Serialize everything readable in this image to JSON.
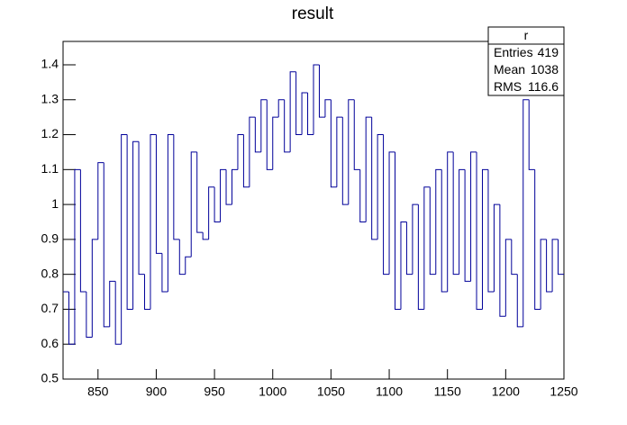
{
  "chart_data": {
    "type": "histogram",
    "title": "result",
    "bins": [
      820,
      825,
      830,
      835,
      840,
      845,
      850,
      855,
      860,
      865,
      870,
      875,
      880,
      885,
      890,
      895,
      900,
      905,
      910,
      915,
      920,
      925,
      930,
      935,
      940,
      945,
      950,
      955,
      960,
      965,
      970,
      975,
      980,
      985,
      990,
      995,
      1000,
      1005,
      1010,
      1015,
      1020,
      1025,
      1030,
      1035,
      1040,
      1045,
      1050,
      1055,
      1060,
      1065,
      1070,
      1075,
      1080,
      1085,
      1090,
      1095,
      1100,
      1105,
      1110,
      1115,
      1120,
      1125,
      1130,
      1135,
      1140,
      1145,
      1150,
      1155,
      1160,
      1165,
      1170,
      1175,
      1180,
      1185,
      1190,
      1195,
      1200,
      1205,
      1210,
      1215,
      1220,
      1225,
      1230,
      1235,
      1240,
      1245,
      1250
    ],
    "values": [
      0.75,
      0.6,
      1.1,
      0.75,
      0.62,
      0.9,
      1.12,
      0.65,
      0.78,
      0.6,
      1.2,
      0.7,
      1.18,
      0.8,
      0.7,
      1.2,
      0.86,
      0.75,
      1.2,
      0.9,
      0.8,
      0.85,
      1.15,
      0.92,
      0.9,
      1.05,
      0.95,
      1.1,
      1.0,
      1.1,
      1.2,
      1.05,
      1.25,
      1.15,
      1.3,
      1.1,
      1.25,
      1.3,
      1.15,
      1.38,
      1.2,
      1.32,
      1.2,
      1.4,
      1.25,
      1.3,
      1.05,
      1.25,
      1.0,
      1.3,
      1.1,
      0.95,
      1.25,
      0.9,
      1.2,
      0.8,
      1.15,
      0.7,
      0.95,
      0.8,
      1.0,
      0.7,
      1.05,
      0.8,
      1.1,
      0.75,
      1.15,
      0.8,
      1.1,
      0.78,
      1.15,
      0.7,
      1.1,
      0.75,
      1.0,
      0.68,
      0.9,
      0.8,
      0.65,
      1.3,
      1.1,
      0.7,
      0.9,
      0.75,
      0.9,
      0.8
    ],
    "color": "#000099",
    "xlim": [
      820,
      1250
    ],
    "xticks": [
      850,
      900,
      950,
      1000,
      1050,
      1100,
      1150,
      1200,
      1250
    ],
    "ylim": [
      0.5,
      1.467
    ],
    "yticks": [
      0.5,
      0.6,
      0.7,
      0.8,
      0.9,
      1,
      1.1,
      1.2,
      1.3,
      1.4
    ],
    "stats": {
      "title": "r",
      "rows": [
        {
          "label": "Entries",
          "value": 419
        },
        {
          "label": "Mean",
          "value": 1038
        },
        {
          "label": "RMS",
          "value": 116.6
        }
      ]
    }
  }
}
